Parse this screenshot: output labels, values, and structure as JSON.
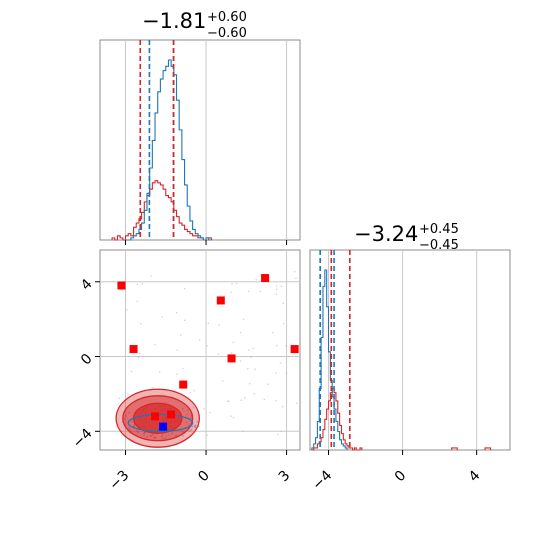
{
  "colors": {
    "blue": "#1f77b4",
    "red": "#d62728",
    "grid": "#c8c8c8",
    "frame": "#8c8c8c",
    "marker_red": "#ff0000",
    "marker_blue": "#0000ff"
  },
  "chart_data": [
    {
      "type": "histogram",
      "panel": "top-left",
      "parameter_index": 0,
      "title": {
        "main": "−1.81",
        "sup": "+0.60",
        "sub": "−0.60"
      },
      "xlim": [
        -3.95,
        3.5
      ],
      "grid": true,
      "x_ticks": [
        -3,
        0,
        3
      ],
      "quantile_lines": {
        "blue": [
          -2.11,
          -1.21
        ],
        "red": [
          -2.45,
          -1.21
        ]
      },
      "series": [
        {
          "color": "blue",
          "bin_start": -3.0,
          "bin_width": 0.1,
          "counts": [
            0,
            0,
            1,
            2,
            3,
            5,
            8,
            14,
            22,
            34,
            47,
            60,
            70,
            76,
            80,
            82,
            85,
            82,
            78,
            66,
            52,
            38,
            26,
            16,
            9,
            5,
            3,
            2,
            1,
            0,
            1,
            0
          ]
        },
        {
          "color": "red",
          "bin_start": -3.5,
          "bin_width": 0.1,
          "counts": [
            1,
            0,
            2,
            1,
            0,
            2,
            3,
            2,
            6,
            8,
            10,
            13,
            18,
            21,
            24,
            27,
            28,
            27,
            26,
            24,
            21,
            20,
            18,
            14,
            11,
            8,
            7,
            5,
            4,
            3,
            2,
            2,
            1,
            1,
            0,
            1,
            1
          ]
        }
      ]
    },
    {
      "type": "scatter",
      "panel": "bottom-left",
      "xlim": [
        -3.95,
        3.5
      ],
      "ylim": [
        -5.0,
        5.7
      ],
      "grid": true,
      "x_ticks": [
        -3,
        0,
        3
      ],
      "y_ticks": [
        -4,
        0,
        4
      ],
      "x_tick_labels": [
        "−3",
        "0",
        "3"
      ],
      "y_tick_labels": [
        "−4",
        "0",
        "4"
      ],
      "red_points": [
        {
          "x": -3.15,
          "y": 3.8
        },
        {
          "x": -2.7,
          "y": 0.4
        },
        {
          "x": 0.55,
          "y": 3.0
        },
        {
          "x": 0.95,
          "y": -0.1
        },
        {
          "x": 2.2,
          "y": 4.2
        },
        {
          "x": 3.3,
          "y": 0.4
        },
        {
          "x": -0.85,
          "y": -1.5
        },
        {
          "x": -1.9,
          "y": -3.2
        },
        {
          "x": -1.3,
          "y": -3.1
        }
      ],
      "blue_points": [
        {
          "x": -1.6,
          "y": -3.75
        }
      ],
      "contours": [
        {
          "color": "red",
          "cx": -1.8,
          "cy": -3.3,
          "rx": 1.55,
          "ry": 1.55,
          "fill_opacity": 0.35
        },
        {
          "color": "red",
          "cx": -1.8,
          "cy": -3.3,
          "rx": 1.3,
          "ry": 1.2,
          "fill_opacity": 0.5
        },
        {
          "color": "red",
          "cx": -1.8,
          "cy": -3.3,
          "rx": 0.9,
          "ry": 0.8,
          "fill_opacity": 0.7
        },
        {
          "color": "blue",
          "cx": -1.7,
          "cy": -3.55,
          "rx": 1.2,
          "ry": 0.45,
          "fill_opacity": 0.0
        }
      ],
      "scatter_cloud": {
        "x_range": [
          -3.3,
          3.4
        ],
        "y_range": [
          -4.5,
          4.6
        ]
      }
    },
    {
      "type": "histogram",
      "panel": "bottom-right",
      "parameter_index": 1,
      "title": {
        "main": "−3.24",
        "sup": "+0.45",
        "sub": "−0.45"
      },
      "xlim": [
        -5.0,
        5.8
      ],
      "grid": true,
      "x_ticks": [
        -4,
        0,
        4
      ],
      "x_tick_labels": [
        "−4",
        "0",
        "4"
      ],
      "quantile_lines": {
        "blue": [
          -4.45,
          -3.7
        ],
        "red": [
          -3.85,
          -2.85
        ]
      },
      "series": [
        {
          "color": "blue",
          "bin_start": -4.9,
          "bin_width": 0.1,
          "counts": [
            1,
            3,
            6,
            14,
            30,
            55,
            80,
            88,
            70,
            48,
            34,
            26,
            20,
            14,
            9,
            5,
            3,
            2,
            1
          ]
        },
        {
          "color": "red",
          "bin_start": -4.9,
          "bin_width": 0.1,
          "counts": [
            0,
            1,
            1,
            3,
            4,
            6,
            10,
            15,
            20,
            24,
            28,
            30,
            28,
            24,
            18,
            12,
            8,
            5,
            3,
            2,
            1,
            1,
            0,
            1,
            0,
            0,
            1
          ]
        }
      ],
      "outliers": [
        {
          "color": "red",
          "x": 2.8,
          "count": 1
        },
        {
          "color": "red",
          "x": 4.6,
          "count": 1
        }
      ]
    }
  ]
}
